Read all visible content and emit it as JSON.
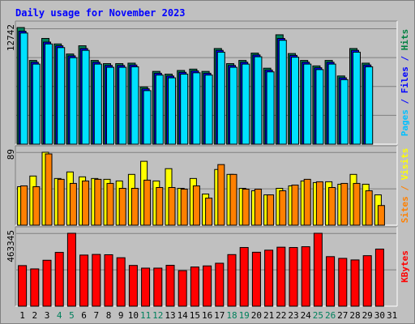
{
  "chart_data": {
    "type": "bar",
    "title": "Daily usage for November 2023",
    "days": [
      "1",
      "2",
      "3",
      "4",
      "5",
      "6",
      "7",
      "8",
      "9",
      "10",
      "11",
      "12",
      "13",
      "14",
      "15",
      "16",
      "17",
      "18",
      "19",
      "20",
      "21",
      "22",
      "23",
      "24",
      "25",
      "26",
      "27",
      "28",
      "29",
      "30",
      "31"
    ],
    "weekend_days": [
      "4",
      "5",
      "11",
      "12",
      "18",
      "19",
      "25",
      "26"
    ],
    "panels": [
      {
        "id": "hits-files-pages",
        "scale_label": "12742",
        "ymax": 12742,
        "axis_label_parts": [
          {
            "text": "Pages",
            "color": "#00c0ff"
          },
          {
            "text": " / ",
            "color": "#0000ff"
          },
          {
            "text": "Files",
            "color": "#0000ff"
          },
          {
            "text": " / ",
            "color": "#0000ff"
          },
          {
            "text": "Hits",
            "color": "#008040"
          }
        ],
        "series": [
          {
            "name": "Hits",
            "color": "#00805c",
            "values": [
              12742,
              9150,
              11550,
              10950,
              9850,
              10750,
              9150,
              8800,
              8800,
              8850,
              6250,
              7950,
              7650,
              8050,
              8200,
              7950,
              10450,
              8800,
              9150,
              9950,
              8300,
              11950,
              9900,
              9150,
              8550,
              9150,
              7450,
              10450,
              8850,
              0,
              0
            ]
          },
          {
            "name": "Files",
            "color": "#0000ff",
            "values": [
              12342,
              8950,
              11150,
              10750,
              9650,
              10450,
              8950,
              8600,
              8600,
              8650,
              6050,
              7750,
              7450,
              7850,
              8000,
              7750,
              10250,
              8600,
              8950,
              9750,
              8100,
              11550,
              9700,
              8950,
              8350,
              8950,
              7250,
              10250,
              8650,
              0,
              0
            ]
          },
          {
            "name": "Pages",
            "color": "#00e0ff",
            "values": [
              12142,
              8750,
              10950,
              10550,
              9450,
              10250,
              8750,
              8400,
              8400,
              8450,
              5850,
              7550,
              7250,
              7650,
              7800,
              7550,
              10050,
              8400,
              8750,
              9550,
              7900,
              11350,
              9500,
              8750,
              8150,
              8750,
              7050,
              10050,
              8450,
              0,
              0
            ]
          }
        ]
      },
      {
        "id": "visits-sites",
        "scale_label": "89",
        "ymax": 89,
        "axis_label_parts": [
          {
            "text": "Sites",
            "color": "#ff8000"
          },
          {
            "text": " / ",
            "color": "#ff8000"
          },
          {
            "text": "Visits",
            "color": "#ffff00"
          }
        ],
        "series": [
          {
            "name": "Visits",
            "color": "#ffff00",
            "values": [
              47,
              60,
              89,
              57,
              65,
              59,
              57,
              56,
              54,
              62,
              78,
              54,
              69,
              45,
              57,
              38,
              68,
              62,
              45,
              42,
              37,
              45,
              48,
              54,
              52,
              53,
              50,
              62,
              50,
              37,
              0
            ]
          },
          {
            "name": "Sites",
            "color": "#ff8000",
            "values": [
              48,
              47,
              87,
              56,
              51,
              54,
              56,
              51,
              45,
              45,
              55,
              46,
              46,
              44,
              48,
              33,
              74,
              62,
              44,
              44,
              37,
              42,
              49,
              56,
              53,
              46,
              51,
              51,
              42,
              24,
              0
            ]
          }
        ]
      },
      {
        "id": "kbytes",
        "scale_label": "463345",
        "ymax": 463345,
        "axis_label_parts": [
          {
            "text": "KBytes",
            "color": "#ff0000"
          }
        ],
        "series": [
          {
            "name": "KBytes",
            "color": "#ff0000",
            "values": [
              258000,
              237000,
              292000,
              342000,
              463345,
              325000,
              329000,
              327000,
              308000,
              259000,
              242000,
              242000,
              260000,
              226000,
              249000,
              256000,
              273000,
              328000,
              373000,
              343000,
              356000,
              375000,
              373000,
              378000,
              463345,
              315000,
              304000,
              294000,
              321000,
              363000,
              0
            ]
          }
        ]
      }
    ]
  }
}
